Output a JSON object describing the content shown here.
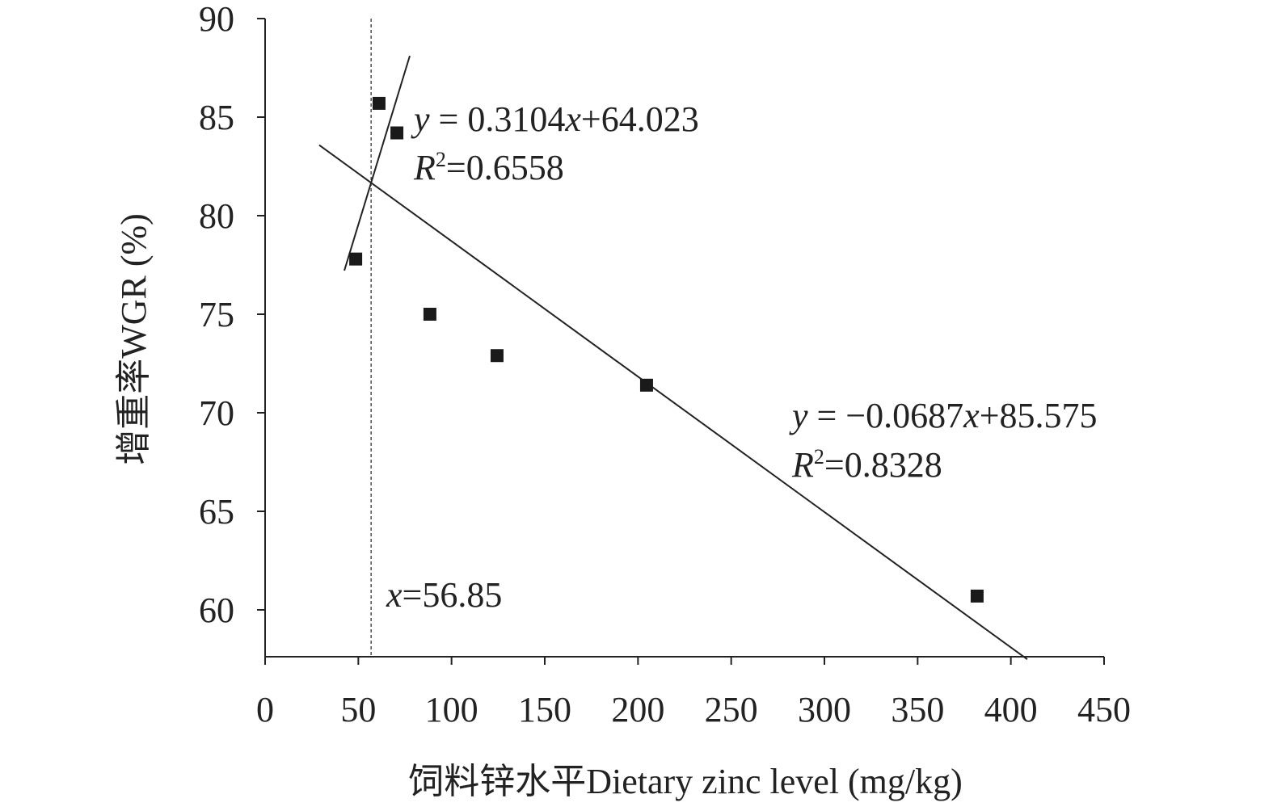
{
  "chart_data": {
    "type": "scatter",
    "title": "",
    "xlabel": "饲料锌水平Dietary zinc level (mg/kg)",
    "ylabel": "增重率WGR (%)",
    "xlim": [
      0,
      450
    ],
    "ylim": [
      57.6,
      90
    ],
    "xticks": [
      0,
      50,
      100,
      150,
      200,
      250,
      300,
      350,
      400,
      450
    ],
    "yticks": [
      60,
      65,
      70,
      75,
      80,
      85,
      90
    ],
    "grid": false,
    "series": [
      {
        "name": "WGR",
        "marker": "square",
        "x": [
          48.6,
          61.1,
          70.7,
          88.4,
          124.4,
          204.6,
          381.9
        ],
        "y": [
          77.8,
          85.7,
          84.2,
          75.0,
          72.9,
          71.4,
          60.7
        ]
      }
    ],
    "fits": [
      {
        "slope": 0.3104,
        "intercept": 64.023,
        "r2": 0.6558,
        "x_range": [
          42.5,
          77.6
        ],
        "eq_y": "y",
        "eq_mid": " = 0.3104",
        "eq_x": "x",
        "eq_end": "+64.023",
        "r_var": "R",
        "r_sup": "2",
        "r_val": "=0.6558"
      },
      {
        "slope": -0.0687,
        "intercept": 85.575,
        "r2": 0.8328,
        "x_range": [
          29,
          408.8
        ],
        "eq_y": "y",
        "eq_mid": " = −0.0687",
        "eq_x": "x",
        "eq_end": "+85.575",
        "r_var": "R",
        "r_sup": "2",
        "r_val": "=0.8328"
      }
    ],
    "breakpoint": {
      "x": 56.85,
      "label_var": "x",
      "label_val": "=56.85"
    }
  }
}
